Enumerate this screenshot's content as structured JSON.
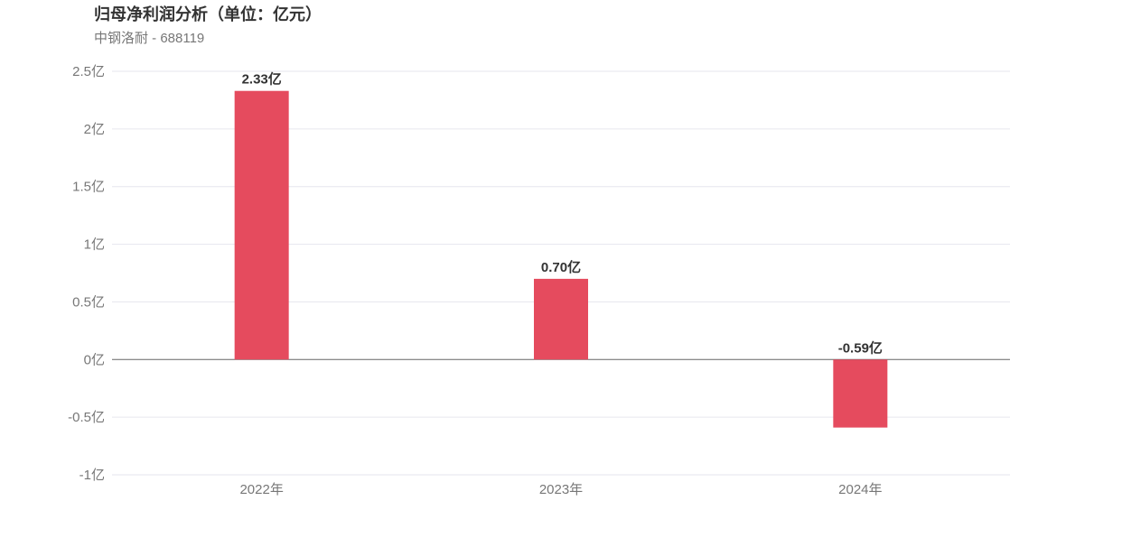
{
  "chart_data": {
    "type": "bar",
    "title": "归母净利润分析（单位：亿元）",
    "subtitle": "中钢洛耐 - 688119",
    "categories": [
      "2022年",
      "2023年",
      "2024年"
    ],
    "values": [
      2.33,
      0.7,
      -0.59
    ],
    "data_labels": [
      "2.33亿",
      "0.70亿",
      "-0.59亿"
    ],
    "ylim": [
      -1,
      2.5
    ],
    "y_ticks": [
      2.5,
      2,
      1.5,
      1,
      0.5,
      0,
      -0.5,
      -1
    ],
    "y_tick_labels": [
      "2.5亿",
      "2亿",
      "1.5亿",
      "1亿",
      "0.5亿",
      "0亿",
      "-0.5亿",
      "-1亿"
    ],
    "grid": true,
    "colors": {
      "bar": "#e54b5e",
      "grid": "#e6e6ee",
      "zero_line": "#666666"
    }
  }
}
